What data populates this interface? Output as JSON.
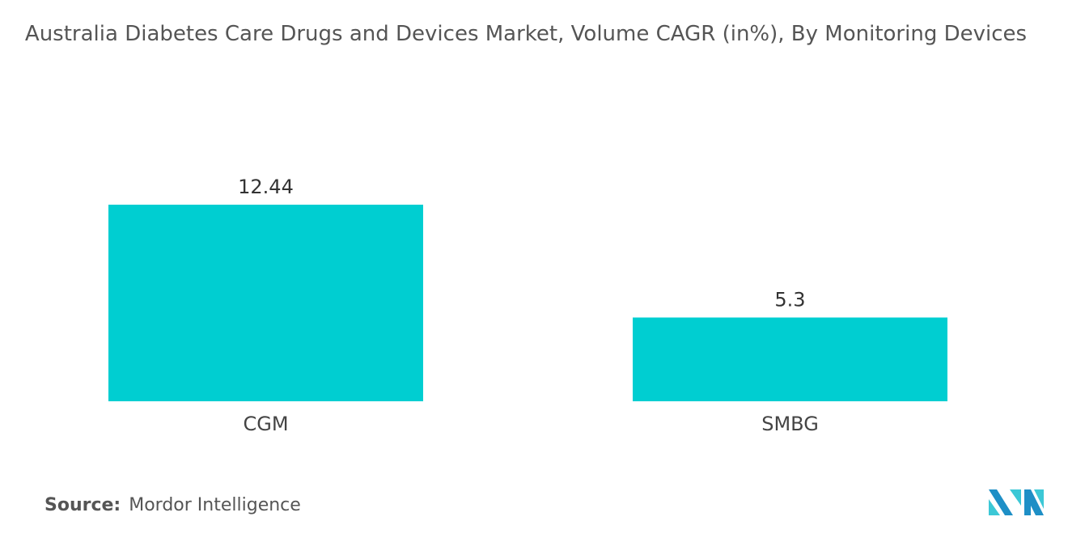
{
  "chart_data": {
    "type": "bar",
    "title": "Australia Diabetes Care Drugs and Devices Market, Volume CAGR (in%), By Monitoring Devices",
    "categories": [
      "CGM",
      "SMBG"
    ],
    "values": [
      12.44,
      5.3
    ],
    "value_labels": [
      "12.44",
      "5.3"
    ],
    "xlabel": "",
    "ylabel": "",
    "ylim": [
      0,
      12.44
    ],
    "grid": false,
    "bar_color": "#00CED1"
  },
  "source": {
    "label": "Source:",
    "text": "Mordor Intelligence"
  },
  "logo": {
    "text": "Mordor Intelligence",
    "colors": [
      "#1E8FC6",
      "#3CC8D6"
    ]
  }
}
